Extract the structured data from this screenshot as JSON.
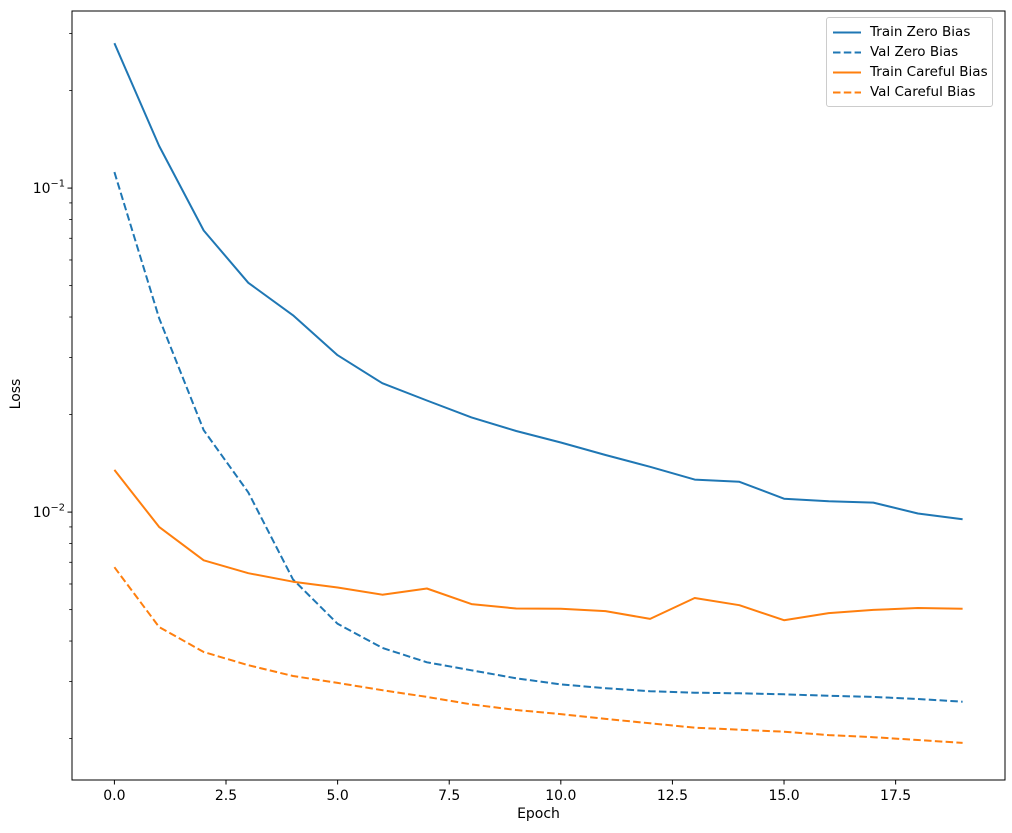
{
  "figure": {
    "background": "#ffffff"
  },
  "chart_data": {
    "type": "line",
    "title": "",
    "xlabel": "Epoch",
    "ylabel": "Loss",
    "yscale": "log",
    "grid": false,
    "legend_position": "upper right",
    "xlim": [
      -0.95,
      19.95
    ],
    "ylim": [
      0.00149,
      0.352
    ],
    "x_ticks": [
      {
        "value": 0,
        "label": "0.0"
      },
      {
        "value": 2.5,
        "label": "2.5"
      },
      {
        "value": 5,
        "label": "5.0"
      },
      {
        "value": 7.5,
        "label": "7.5"
      },
      {
        "value": 10,
        "label": "10.0"
      },
      {
        "value": 12.5,
        "label": "12.5"
      },
      {
        "value": 15,
        "label": "15.0"
      },
      {
        "value": 17.5,
        "label": "17.5"
      }
    ],
    "y_ticks": [
      {
        "value": 0.1,
        "base": "10",
        "exp": "−1"
      },
      {
        "value": 0.01,
        "base": "10",
        "exp": "−2"
      }
    ],
    "x": [
      0,
      1,
      2,
      3,
      4,
      5,
      6,
      7,
      8,
      9,
      10,
      11,
      12,
      13,
      14,
      15,
      16,
      17,
      18,
      19
    ],
    "series": [
      {
        "name": "Train Zero Bias",
        "color": "#1f77b4",
        "style": "solid",
        "values": [
          0.28,
          0.135,
          0.074,
          0.051,
          0.0405,
          0.0305,
          0.025,
          0.0221,
          0.0196,
          0.0178,
          0.0164,
          0.015,
          0.0138,
          0.0126,
          0.0124,
          0.011,
          0.0108,
          0.0107,
          0.0099,
          0.0095
        ]
      },
      {
        "name": "Val Zero Bias",
        "color": "#1f77b4",
        "style": "dashed",
        "values": [
          0.112,
          0.0397,
          0.0179,
          0.0115,
          0.0062,
          0.00452,
          0.00381,
          0.00344,
          0.00325,
          0.00307,
          0.00294,
          0.00286,
          0.0028,
          0.00277,
          0.00276,
          0.00274,
          0.00271,
          0.00269,
          0.00265,
          0.0026
        ]
      },
      {
        "name": "Train Careful Bias",
        "color": "#ff7f0e",
        "style": "solid",
        "values": [
          0.0135,
          0.009,
          0.0071,
          0.00648,
          0.0061,
          0.00585,
          0.00556,
          0.00581,
          0.0052,
          0.00504,
          0.00503,
          0.00495,
          0.00468,
          0.00543,
          0.00516,
          0.00464,
          0.00488,
          0.00499,
          0.00506,
          0.00503
        ]
      },
      {
        "name": "Val Careful Bias",
        "color": "#ff7f0e",
        "style": "dashed",
        "values": [
          0.00676,
          0.00442,
          0.0037,
          0.00337,
          0.00312,
          0.00297,
          0.00282,
          0.00269,
          0.00255,
          0.00245,
          0.00238,
          0.0023,
          0.00223,
          0.00216,
          0.00213,
          0.0021,
          0.00205,
          0.00202,
          0.00198,
          0.00194
        ]
      }
    ]
  }
}
